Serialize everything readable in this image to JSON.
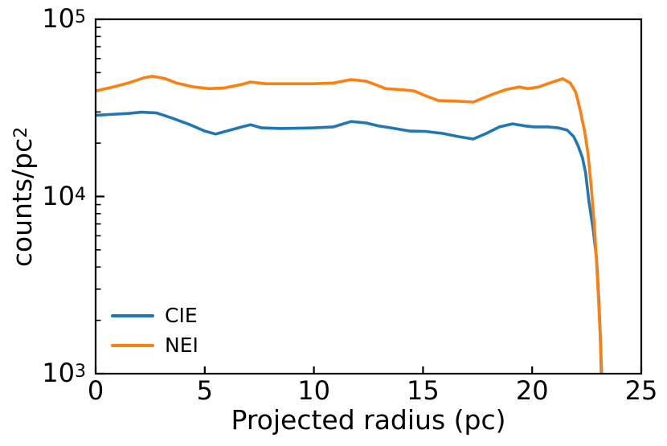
{
  "figure": {
    "background": "#ffffff",
    "axis_color": "#000000"
  },
  "chart_data": {
    "type": "line",
    "title": "",
    "xlabel": "Projected radius (pc)",
    "ylabel_base": "counts/pc",
    "ylabel_exp": "2",
    "xlim": [
      0,
      25
    ],
    "ylim": [
      1000,
      100000
    ],
    "yscale": "log",
    "grid": false,
    "legend_position": "lower left",
    "x_ticks": [
      0,
      5,
      10,
      15,
      20,
      25
    ],
    "x_tick_labels": [
      "0",
      "5",
      "10",
      "15",
      "20",
      "25"
    ],
    "y_ticks": [
      1000,
      10000,
      100000
    ],
    "y_tick_labels": [
      {
        "base": "10",
        "exp": "3"
      },
      {
        "base": "10",
        "exp": "4"
      },
      {
        "base": "10",
        "exp": "5"
      }
    ],
    "series": [
      {
        "name": "CIE",
        "color": "#1f77b4",
        "x": [
          0,
          0.6,
          1.5,
          2.1,
          2.8,
          3.5,
          4.3,
          5.0,
          5.5,
          6.0,
          6.7,
          7.1,
          7.6,
          8.5,
          10.0,
          10.9,
          11.7,
          12.4,
          12.9,
          13.7,
          14.4,
          15.1,
          15.9,
          16.6,
          17.3,
          17.9,
          18.5,
          19.1,
          19.7,
          20.1,
          20.7,
          21.2,
          21.6,
          21.9,
          22.1,
          22.3,
          22.45,
          22.6,
          22.8,
          22.95,
          23.05,
          23.12,
          23.17
        ],
        "y": [
          28700,
          29000,
          29400,
          29900,
          29600,
          27700,
          25500,
          23400,
          22500,
          23400,
          24700,
          25400,
          24400,
          24200,
          24400,
          24700,
          26500,
          26000,
          25100,
          24200,
          23400,
          23300,
          22700,
          21800,
          21100,
          22700,
          24700,
          25700,
          25000,
          24700,
          24700,
          24400,
          23700,
          21800,
          19400,
          16600,
          13600,
          9400,
          6500,
          4500,
          2700,
          1700,
          1000
        ]
      },
      {
        "name": "NEI",
        "color": "#ff7f0e",
        "x": [
          0,
          0.8,
          1.5,
          2.2,
          2.6,
          3.2,
          3.7,
          4.5,
          5.2,
          5.9,
          6.7,
          7.1,
          7.8,
          8.9,
          10.0,
          10.9,
          11.7,
          12.4,
          12.9,
          13.3,
          14.0,
          14.6,
          15.1,
          15.7,
          16.6,
          17.3,
          18.2,
          18.8,
          19.4,
          19.8,
          20.3,
          20.8,
          21.4,
          21.75,
          22.0,
          22.2,
          22.4,
          22.55,
          22.7,
          22.85,
          22.95,
          23.07,
          23.14,
          23.19
        ],
        "y": [
          39400,
          41500,
          43700,
          46700,
          47700,
          46200,
          43700,
          41500,
          40600,
          41000,
          42900,
          44300,
          43300,
          43300,
          43300,
          43700,
          45700,
          44700,
          42400,
          40600,
          40100,
          39400,
          37100,
          34800,
          34500,
          34100,
          37800,
          40100,
          41500,
          40600,
          41500,
          43700,
          46200,
          43700,
          38700,
          30700,
          23400,
          17700,
          11600,
          6900,
          4300,
          2200,
          1400,
          1000
        ]
      }
    ]
  }
}
